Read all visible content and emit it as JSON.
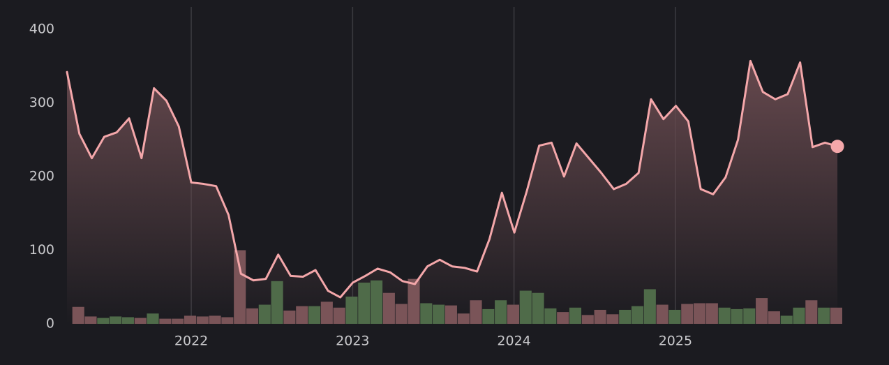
{
  "chart_data": {
    "type": "line",
    "color": "#f4a7aa",
    "x": [
      2021.23,
      2021.307,
      2021.384,
      2021.461,
      2021.538,
      2021.615,
      2021.692,
      2021.769,
      2021.846,
      2021.923,
      2022.0,
      2022.077,
      2022.154,
      2022.231,
      2022.308,
      2022.385,
      2022.462,
      2022.539,
      2022.616,
      2022.693,
      2022.77,
      2022.847,
      2022.924,
      2023.001,
      2023.078,
      2023.155,
      2023.232,
      2023.309,
      2023.386,
      2023.463,
      2023.54,
      2023.617,
      2023.694,
      2023.771,
      2023.848,
      2023.925,
      2024.002,
      2024.079,
      2024.156,
      2024.233,
      2024.31,
      2024.387,
      2024.464,
      2024.541,
      2024.618,
      2024.695,
      2024.772,
      2024.849,
      2024.926,
      2025.003,
      2025.08,
      2025.157,
      2025.234,
      2025.311,
      2025.388,
      2025.465,
      2025.542,
      2025.619,
      2025.696,
      2025.773,
      2025.85,
      2025.927,
      2026.004
    ],
    "values": [
      342,
      258,
      225,
      254,
      260,
      279,
      225,
      320,
      303,
      268,
      192,
      190,
      187,
      148,
      68,
      59,
      61,
      94,
      65,
      64,
      73,
      45,
      36,
      56,
      65,
      75,
      70,
      58,
      54,
      78,
      87,
      78,
      76,
      71,
      115,
      178,
      124,
      180,
      242,
      246,
      200,
      245,
      225,
      205,
      183,
      190,
      205,
      305,
      278,
      296,
      275,
      183,
      176,
      199,
      250,
      357,
      315,
      305,
      312,
      355,
      240,
      246,
      241
    ],
    "bars": {
      "type": "bar",
      "x": [
        2021.3,
        2021.377,
        2021.454,
        2021.531,
        2021.608,
        2021.685,
        2021.762,
        2021.839,
        2021.916,
        2021.993,
        2022.07,
        2022.147,
        2022.224,
        2022.301,
        2022.378,
        2022.455,
        2022.532,
        2022.609,
        2022.686,
        2022.763,
        2022.84,
        2022.917,
        2022.994,
        2023.071,
        2023.148,
        2023.225,
        2023.302,
        2023.379,
        2023.456,
        2023.533,
        2023.61,
        2023.687,
        2023.764,
        2023.841,
        2023.918,
        2023.995,
        2024.072,
        2024.149,
        2024.226,
        2024.303,
        2024.38,
        2024.457,
        2024.534,
        2024.611,
        2024.688,
        2024.765,
        2024.842,
        2024.919,
        2024.996,
        2025.073,
        2025.15,
        2025.227,
        2025.304,
        2025.381,
        2025.458,
        2025.535,
        2025.612,
        2025.689,
        2025.766,
        2025.843,
        2025.92,
        2025.997
      ],
      "values": [
        23,
        10,
        8,
        10,
        9,
        8,
        14,
        7,
        7,
        11,
        10,
        11,
        9,
        100,
        21,
        26,
        58,
        18,
        24,
        24,
        30,
        22,
        37,
        56,
        59,
        42,
        27,
        61,
        28,
        26,
        25,
        14,
        32,
        20,
        32,
        26,
        45,
        42,
        21,
        16,
        22,
        12,
        19,
        13,
        19,
        24,
        47,
        26,
        19,
        27,
        28,
        28,
        22,
        20,
        21,
        35,
        17,
        11,
        22,
        32,
        22,
        22
      ],
      "colors": [
        "#7a5458",
        "#7a5458",
        "#4f6b49",
        "#4f6b49",
        "#4f6b49",
        "#7a5458",
        "#4f6b49",
        "#7a5458",
        "#7a5458",
        "#7a5458",
        "#7a5458",
        "#7a5458",
        "#7a5458",
        "#7a5458",
        "#7a5458",
        "#4f6b49",
        "#4f6b49",
        "#7a5458",
        "#7a5458",
        "#4f6b49",
        "#7a5458",
        "#7a5458",
        "#4f6b49",
        "#4f6b49",
        "#4f6b49",
        "#7a5458",
        "#7a5458",
        "#7a5458",
        "#4f6b49",
        "#4f6b49",
        "#7a5458",
        "#7a5458",
        "#7a5458",
        "#4f6b49",
        "#4f6b49",
        "#7a5458",
        "#4f6b49",
        "#4f6b49",
        "#4f6b49",
        "#7a5458",
        "#4f6b49",
        "#7a5458",
        "#7a5458",
        "#7a5458",
        "#4f6b49",
        "#4f6b49",
        "#4f6b49",
        "#7a5458",
        "#4f6b49",
        "#7a5458",
        "#7a5458",
        "#7a5458",
        "#4f6b49",
        "#4f6b49",
        "#4f6b49",
        "#7a5458",
        "#7a5458",
        "#4f6b49",
        "#4f6b49",
        "#7a5458",
        "#4f6b49",
        "#7a5458"
      ]
    },
    "xlim": [
      2021.23,
      2026.034
    ],
    "ylim": [
      0,
      400
    ],
    "xticks": [
      2022,
      2023,
      2024,
      2025
    ],
    "yticks": [
      0,
      100,
      200,
      300,
      400
    ],
    "grid": "x"
  }
}
